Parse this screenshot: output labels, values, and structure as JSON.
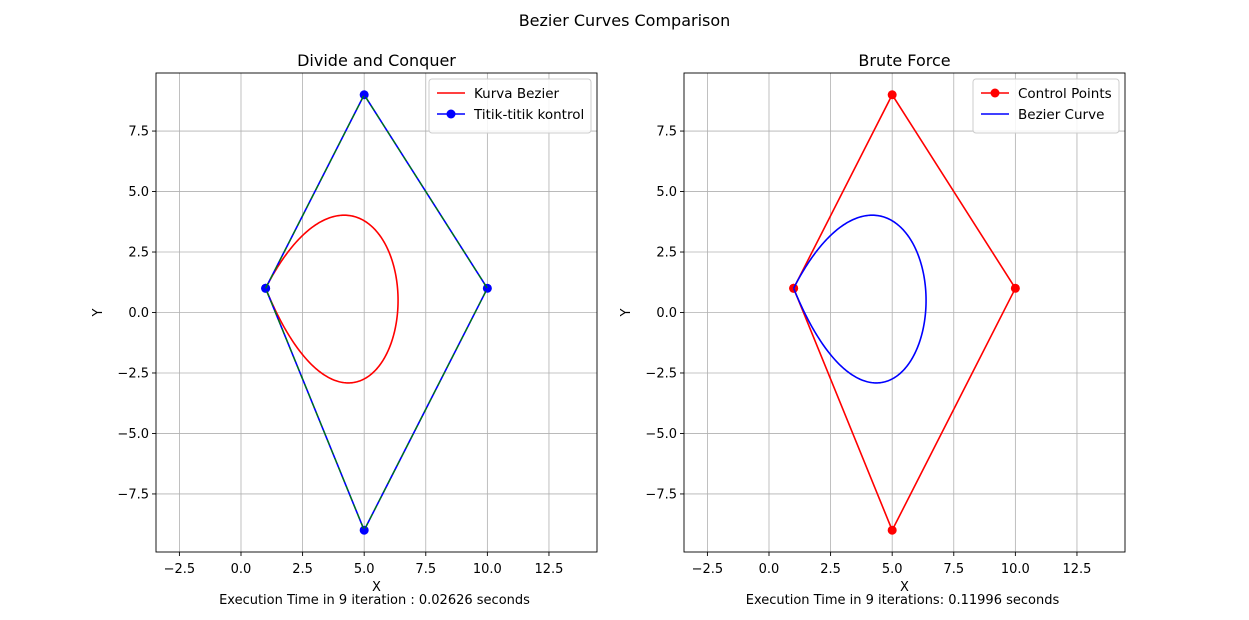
{
  "figure": {
    "suptitle": "Bezier Curves Comparison",
    "colors": {
      "grid": "#b0b0b0",
      "spine": "#000000",
      "background": "#ffffff"
    }
  },
  "chart_data": [
    {
      "type": "line",
      "title": "Divide and Conquer",
      "xlabel": "X",
      "ylabel": "Y",
      "footnote": "Execution Time in 9 iteration : 0.02626 seconds",
      "xlim": [
        -3.45,
        14.45
      ],
      "ylim": [
        -9.9,
        9.9
      ],
      "xticks": [
        -2.5,
        0.0,
        2.5,
        5.0,
        7.5,
        10.0,
        12.5
      ],
      "xtick_labels": [
        "−2.5",
        "0.0",
        "2.5",
        "5.0",
        "7.5",
        "10.0",
        "12.5"
      ],
      "yticks": [
        -7.5,
        -5.0,
        -2.5,
        0.0,
        2.5,
        5.0,
        7.5
      ],
      "ytick_labels": [
        "−7.5",
        "−5.0",
        "−2.5",
        "0.0",
        "2.5",
        "5.0",
        "7.5"
      ],
      "grid": true,
      "legend_position": "top-right",
      "control_points": {
        "x": [
          1,
          5,
          10,
          5,
          1
        ],
        "y": [
          1,
          9,
          1,
          -9,
          1
        ]
      },
      "series": [
        {
          "name": "Kurva Bezier",
          "role": "curve",
          "color": "#ff0000",
          "marker": false
        },
        {
          "name": "Titik-titik kontrol",
          "role": "control",
          "color": "#0000ff",
          "marker": true
        },
        {
          "name": "",
          "role": "control-overlay",
          "color": "#008000",
          "dashed": true,
          "marker": false
        }
      ]
    },
    {
      "type": "line",
      "title": "Brute Force",
      "xlabel": "X",
      "ylabel": "Y",
      "footnote": "Execution Time in 9 iterations: 0.11996 seconds",
      "xlim": [
        -3.45,
        14.45
      ],
      "ylim": [
        -9.9,
        9.9
      ],
      "xticks": [
        -2.5,
        0.0,
        2.5,
        5.0,
        7.5,
        10.0,
        12.5
      ],
      "xtick_labels": [
        "−2.5",
        "0.0",
        "2.5",
        "5.0",
        "7.5",
        "10.0",
        "12.5"
      ],
      "yticks": [
        -7.5,
        -5.0,
        -2.5,
        0.0,
        2.5,
        5.0,
        7.5
      ],
      "ytick_labels": [
        "−7.5",
        "−5.0",
        "−2.5",
        "0.0",
        "2.5",
        "5.0",
        "7.5"
      ],
      "grid": true,
      "legend_position": "top-right",
      "control_points": {
        "x": [
          1,
          5,
          10,
          5,
          1
        ],
        "y": [
          1,
          9,
          1,
          -9,
          1
        ]
      },
      "series": [
        {
          "name": "Control Points",
          "role": "control",
          "color": "#ff0000",
          "marker": true
        },
        {
          "name": "Bezier Curve",
          "role": "curve",
          "color": "#0000ff",
          "marker": false
        }
      ]
    }
  ]
}
